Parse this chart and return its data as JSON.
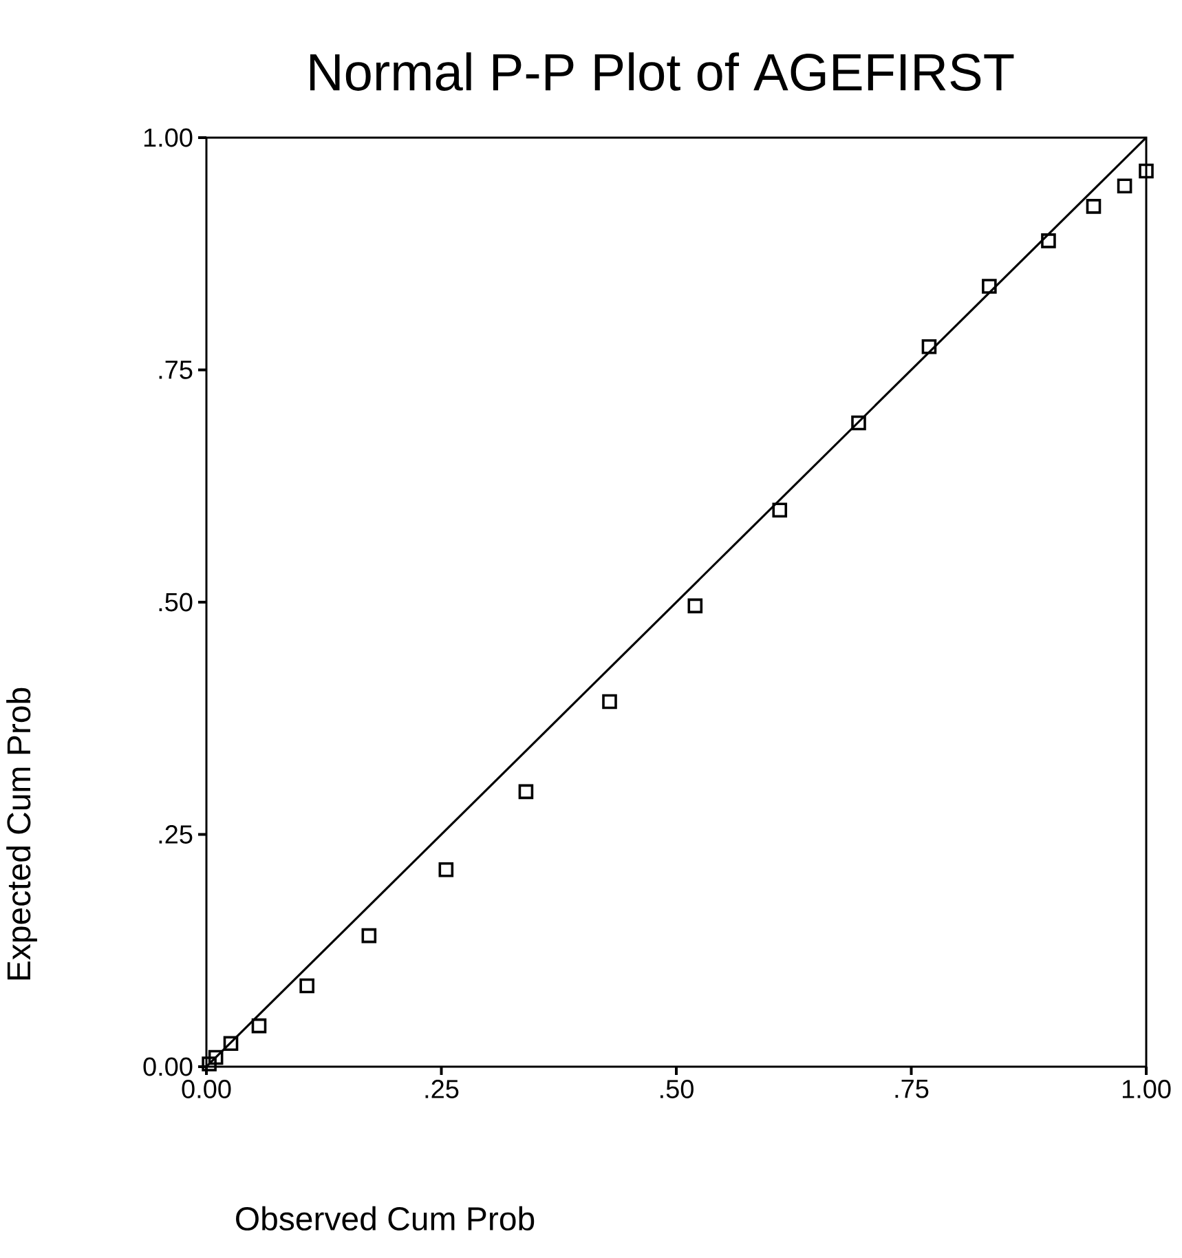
{
  "chart_data": {
    "type": "scatter",
    "title": "Normal P-P Plot of AGEFIRST",
    "xlabel": "Observed Cum Prob",
    "ylabel": "Expected Cum Prob",
    "series": [
      {
        "color": "#000000",
        "marker": "square",
        "x": [
          0.003,
          0.01,
          0.026,
          0.056,
          0.107,
          0.173,
          0.255,
          0.34,
          0.429,
          0.52,
          0.61,
          0.694,
          0.769,
          0.833,
          0.896,
          0.944,
          0.977,
          1.0
        ],
        "values": [
          0.003,
          0.01,
          0.025,
          0.044,
          0.087,
          0.141,
          0.212,
          0.296,
          0.393,
          0.496,
          0.599,
          0.693,
          0.775,
          0.84,
          0.889,
          0.926,
          0.948,
          0.964
        ]
      },
      {
        "type": "line",
        "color": "#000000",
        "marker": "none",
        "x": [
          0,
          1
        ],
        "values": [
          0,
          1
        ]
      }
    ],
    "xlim": [
      0,
      1
    ],
    "ylim": [
      0,
      1
    ],
    "xticks": [
      {
        "value": 0,
        "label": "0.00"
      },
      {
        "value": 0.25,
        "label": ".25"
      },
      {
        "value": 0.5,
        "label": ".50"
      },
      {
        "value": 0.75,
        "label": ".75"
      },
      {
        "value": 1,
        "label": "1.00"
      }
    ],
    "yticks": [
      {
        "value": 0,
        "label": "0.00"
      },
      {
        "value": 0.25,
        "label": ".25"
      },
      {
        "value": 0.5,
        "label": ".50"
      },
      {
        "value": 0.75,
        "label": ".75"
      },
      {
        "value": 1,
        "label": "1.00"
      }
    ]
  }
}
